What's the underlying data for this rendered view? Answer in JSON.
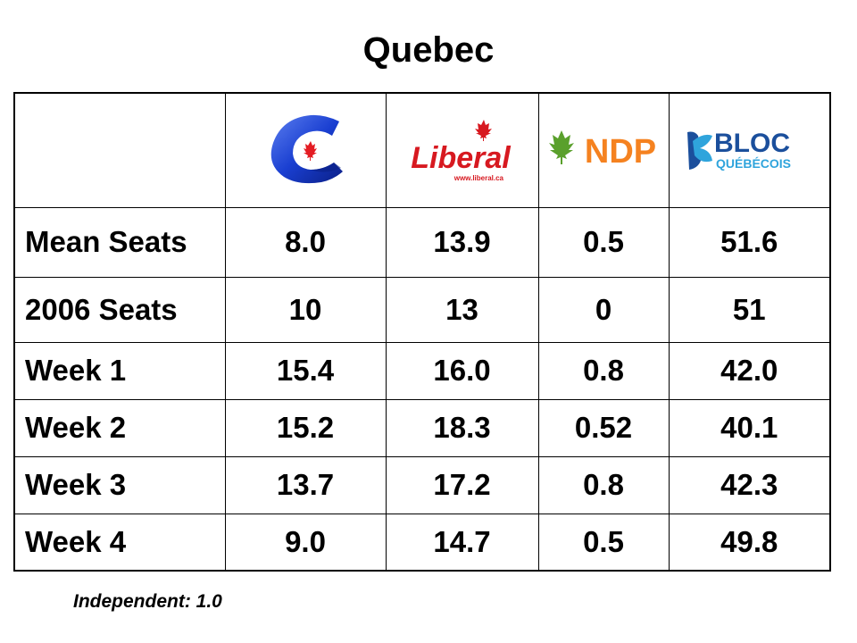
{
  "title": "Quebec",
  "parties": [
    {
      "id": "conservative",
      "logo_icon": "conservative-c-logo-icon",
      "color": "#1a3fd1",
      "accent": "#e41c23"
    },
    {
      "id": "liberal",
      "logo_icon": "liberal-wordmark-logo-icon",
      "logo_text": "Liberal",
      "logo_url_text": "www.liberal.ca",
      "color": "#d71920"
    },
    {
      "id": "ndp",
      "logo_icon": "ndp-wordmark-logo-icon",
      "logo_text": "NDP",
      "color": "#f58220",
      "accent": "#5aa02c"
    },
    {
      "id": "bloc",
      "logo_icon": "bloc-quebecois-logo-icon",
      "logo_text": "BLOC",
      "logo_subtext": "QUÉBÉCOIS",
      "color": "#1b4f9c",
      "accent": "#2fa4dc"
    }
  ],
  "rows": [
    {
      "label": "Mean Seats",
      "values": [
        "8.0",
        "13.9",
        "0.5",
        "51.6"
      ]
    },
    {
      "label": "2006 Seats",
      "values": [
        "10",
        "13",
        "0",
        "51"
      ]
    },
    {
      "label": "Week 1",
      "values": [
        "15.4",
        "16.0",
        "0.8",
        "42.0"
      ]
    },
    {
      "label": "Week 2",
      "values": [
        "15.2",
        "18.3",
        "0.52",
        "40.1"
      ]
    },
    {
      "label": "Week 3",
      "values": [
        "13.7",
        "17.2",
        "0.8",
        "42.3"
      ]
    },
    {
      "label": "Week 4",
      "values": [
        "9.0",
        "14.7",
        "0.5",
        "49.8"
      ]
    }
  ],
  "footnote": "Independent: 1.0"
}
